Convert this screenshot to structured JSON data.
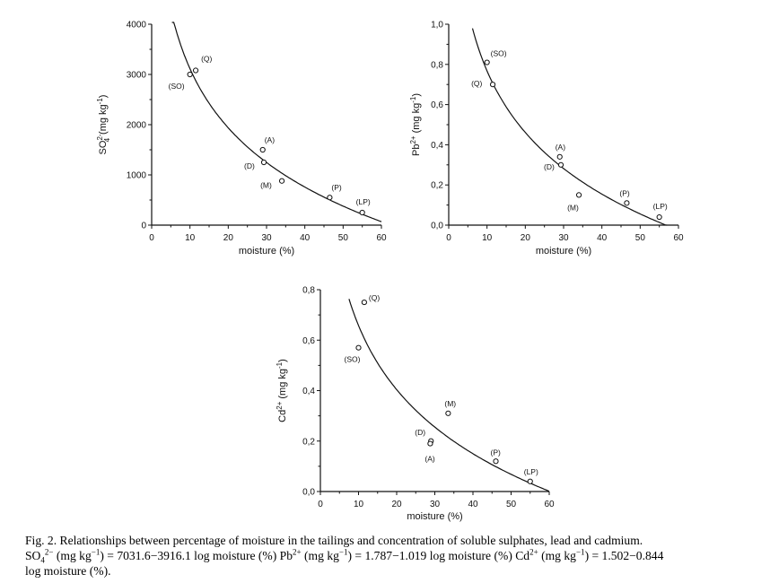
{
  "chart_data": [
    {
      "type": "scatter",
      "id": "so4",
      "ylabel_html": "SO<tspan baseline-shift='super' font-size='8'>2-</tspan><tspan baseline-shift='sub' font-size='8' dx='-8'>4</tspan> (mg kg<tspan baseline-shift='super' font-size='8'>-1</tspan>)",
      "ylabel": "SO4 2- (mg kg -1)",
      "xlabel": "moisture (%)",
      "xlim": [
        0,
        60
      ],
      "ylim": [
        0,
        4000
      ],
      "xticks": [
        "0",
        "10",
        "20",
        "30",
        "40",
        "50",
        "60"
      ],
      "yticks": [
        "0",
        "1000",
        "2000",
        "3000",
        "4000"
      ],
      "points": [
        {
          "x": 11.5,
          "y": 3080,
          "label": "(Q)"
        },
        {
          "x": 10.0,
          "y": 3000,
          "label": "(SO)"
        },
        {
          "x": 29.0,
          "y": 1500,
          "label": "(A)"
        },
        {
          "x": 29.3,
          "y": 1250,
          "label": "(D)"
        },
        {
          "x": 34.0,
          "y": 880,
          "label": "(M)"
        },
        {
          "x": 46.5,
          "y": 550,
          "label": "(P)"
        },
        {
          "x": 55.0,
          "y": 250,
          "label": "(LP)"
        }
      ],
      "fit": {
        "a": 7031.6,
        "b": -3916.1,
        "xstart": 5.3,
        "xend": 60
      }
    },
    {
      "type": "scatter",
      "id": "pb",
      "ylabel": "Pb2+ (mg kg -1)",
      "xlabel": "moisture (%)",
      "xlim": [
        0,
        60
      ],
      "ylim": [
        0,
        1.0
      ],
      "xticks": [
        "0",
        "10",
        "20",
        "30",
        "40",
        "50",
        "60"
      ],
      "yticks": [
        "0,0",
        "0,2",
        "0,4",
        "0,6",
        "0,8",
        "1,0"
      ],
      "points": [
        {
          "x": 10.0,
          "y": 0.81,
          "label": "(SO)"
        },
        {
          "x": 11.5,
          "y": 0.7,
          "label": "(Q)"
        },
        {
          "x": 29.0,
          "y": 0.34,
          "label": "(A)"
        },
        {
          "x": 29.3,
          "y": 0.3,
          "label": "(D)"
        },
        {
          "x": 34.0,
          "y": 0.15,
          "label": "(M)"
        },
        {
          "x": 46.5,
          "y": 0.11,
          "label": "(P)"
        },
        {
          "x": 55.0,
          "y": 0.04,
          "label": "(LP)"
        }
      ],
      "fit": {
        "a": 1.787,
        "b": -1.019,
        "xstart": 6.2,
        "xend": 57
      }
    },
    {
      "type": "scatter",
      "id": "cd",
      "ylabel": "Cd2+ (mg kg -1)",
      "xlabel": "moisture (%)",
      "xlim": [
        0,
        60
      ],
      "ylim": [
        0,
        0.8
      ],
      "xticks": [
        "0",
        "10",
        "20",
        "30",
        "40",
        "50",
        "60"
      ],
      "yticks": [
        "0,0",
        "0,2",
        "0,4",
        "0,6",
        "0,8"
      ],
      "points": [
        {
          "x": 11.5,
          "y": 0.75,
          "label": "(Q)"
        },
        {
          "x": 10.0,
          "y": 0.57,
          "label": "(SO)"
        },
        {
          "x": 33.5,
          "y": 0.31,
          "label": "(M)"
        },
        {
          "x": 29.0,
          "y": 0.2,
          "label": "(D)"
        },
        {
          "x": 28.8,
          "y": 0.19,
          "label": "(A)"
        },
        {
          "x": 46.0,
          "y": 0.12,
          "label": "(P)"
        },
        {
          "x": 55.0,
          "y": 0.04,
          "label": "(LP)"
        }
      ],
      "fit": {
        "a": 1.502,
        "b": -0.844,
        "xstart": 7.5,
        "xend": 60
      }
    }
  ],
  "caption": {
    "line1": "Fig. 2. Relationships between percentage of moisture in the tailings and concentration of soluble sulphates, lead and cadmium.",
    "line2_so4": "(mg kg",
    "line2_so4_eq": ") = 7031.6−3916.1 log moisture (%) Pb",
    "line2_pb_unit": " (mg kg",
    "line2_pb_eq": ") = 1.787−1.019 log moisture (%) Cd",
    "line2_cd_unit": " (mg kg",
    "line2_cd_eq": ") = 1.502−0.844",
    "line3": "log moisture (%)."
  }
}
